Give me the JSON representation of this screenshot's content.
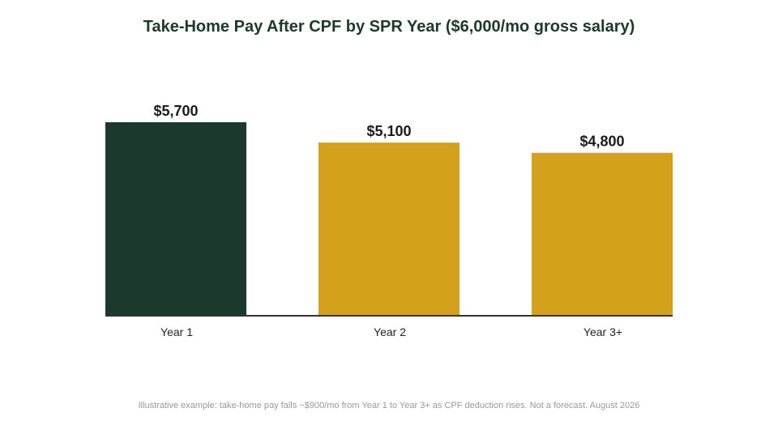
{
  "chart_data": {
    "type": "bar",
    "title": "Take-Home Pay After CPF by SPR Year ($6,000/mo gross salary)",
    "categories": [
      "Year 1",
      "Year 2",
      "Year 3+"
    ],
    "values": [
      5700,
      5100,
      4800
    ],
    "value_labels": [
      "$5,700",
      "$5,100",
      "$4,800"
    ],
    "ylim": [
      0,
      6200
    ],
    "xlabel": "",
    "ylabel": "",
    "grid": false,
    "legend": "none",
    "colors": [
      "#1c3a2b",
      "#d4a11c",
      "#d4a11c"
    ],
    "axis_color": "#333333",
    "footnote": "Illustrative example: take-home pay falls ~$900/mo from Year 1 to Year 3+ as CPF deduction rises. Not a forecast. August 2026"
  }
}
